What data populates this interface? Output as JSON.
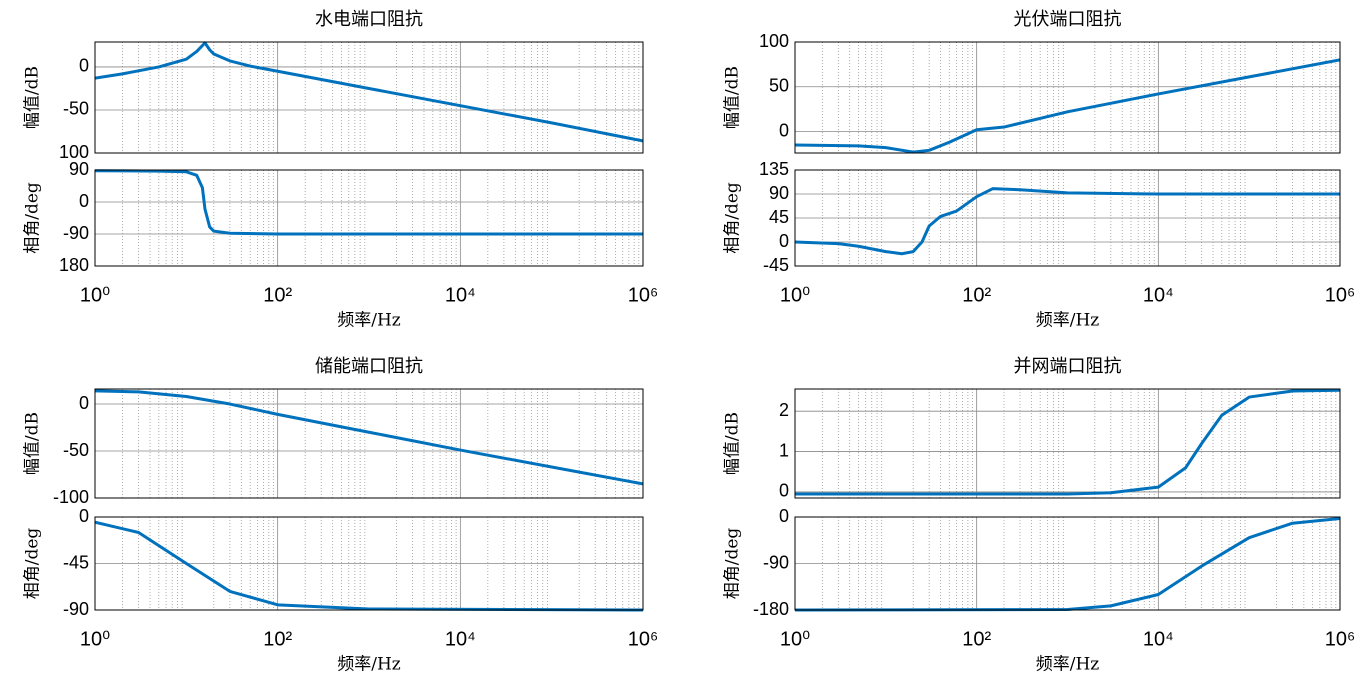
{
  "chart_data": [
    {
      "type": "line",
      "title": "水电端口阻抗",
      "ylabel": "幅值/dB",
      "xscale": "log",
      "xlim": [
        1,
        1000000
      ],
      "xticks": [
        1,
        100,
        10000,
        1000000
      ],
      "show_xticklabels": false,
      "ylim": [
        -100,
        29
      ],
      "yticks": [
        0,
        -50,
        {
          "value": -100,
          "label": "100"
        }
      ],
      "grid": true,
      "color": "#0072bd",
      "x": [
        1,
        2,
        5,
        10,
        13,
        16,
        18,
        20,
        30,
        50,
        100,
        1000,
        10000,
        100000,
        1000000
      ],
      "values": [
        -13,
        -8,
        0,
        9,
        18,
        28,
        20,
        15,
        7,
        1,
        -5,
        -25,
        -45,
        -65,
        -86
      ]
    },
    {
      "type": "line",
      "ylabel": "相角/deg",
      "xlabel": "频率/Hz",
      "xscale": "log",
      "xlim": [
        1,
        1000000
      ],
      "xticks": [
        {
          "value": 1,
          "label": "10⁰"
        },
        {
          "value": 100,
          "label": "10²"
        },
        {
          "value": 10000,
          "label": "10⁴"
        },
        {
          "value": 1000000,
          "label": "10⁶"
        }
      ],
      "show_xticklabels": true,
      "ylim": [
        -180,
        90
      ],
      "yticks": [
        90,
        0,
        -90,
        {
          "value": -180,
          "label": "180"
        }
      ],
      "grid": true,
      "color": "#0072bd",
      "x": [
        1,
        5,
        10,
        13,
        15,
        16,
        18,
        20,
        30,
        100,
        1000000
      ],
      "values": [
        88,
        87,
        85,
        75,
        40,
        -20,
        -70,
        -82,
        -88,
        -90,
        -90
      ]
    },
    {
      "type": "line",
      "title": "光伏端口阻抗",
      "ylabel": "幅值/dB",
      "xscale": "log",
      "xlim": [
        1,
        1000000
      ],
      "xticks": [
        1,
        100,
        10000,
        1000000
      ],
      "show_xticklabels": false,
      "ylim": [
        -24,
        100
      ],
      "yticks": [
        100,
        50,
        0
      ],
      "grid": true,
      "color": "#0072bd",
      "x": [
        1,
        5,
        10,
        20,
        30,
        50,
        100,
        200,
        1000,
        10000,
        100000,
        1000000
      ],
      "values": [
        -15,
        -16,
        -18,
        -23,
        -21,
        -12,
        2,
        5,
        22,
        42,
        61,
        80
      ]
    },
    {
      "type": "line",
      "ylabel": "相角/deg",
      "xlabel": "频率/Hz",
      "xscale": "log",
      "xlim": [
        1,
        1000000
      ],
      "xticks": [
        {
          "value": 1,
          "label": "10⁰"
        },
        {
          "value": 100,
          "label": "10²"
        },
        {
          "value": 10000,
          "label": "10⁴"
        },
        {
          "value": 1000000,
          "label": "10⁶"
        }
      ],
      "show_xticklabels": true,
      "ylim": [
        -45,
        135
      ],
      "yticks": [
        135,
        90,
        45,
        0,
        -45
      ],
      "grid": true,
      "color": "#0072bd",
      "x": [
        1,
        3,
        5,
        10,
        15,
        20,
        25,
        30,
        40,
        60,
        100,
        150,
        300,
        1000,
        10000,
        1000000
      ],
      "values": [
        0,
        -3,
        -8,
        -18,
        -22,
        -18,
        0,
        30,
        48,
        58,
        85,
        100,
        98,
        92,
        90,
        90
      ]
    },
    {
      "type": "line",
      "title": "储能端口阻抗",
      "ylabel": "幅值/dB",
      "xscale": "log",
      "xlim": [
        1,
        1000000
      ],
      "xticks": [
        1,
        100,
        10000,
        1000000
      ],
      "show_xticklabels": false,
      "ylim": [
        -100,
        16
      ],
      "yticks": [
        0,
        -50,
        -100
      ],
      "grid": true,
      "color": "#0072bd",
      "x": [
        1,
        3,
        10,
        30,
        100,
        1000,
        10000,
        100000,
        1000000
      ],
      "values": [
        14,
        13,
        8,
        0,
        -11,
        -30,
        -49,
        -67,
        -85
      ]
    },
    {
      "type": "line",
      "ylabel": "相角/deg",
      "xlabel": "频率/Hz",
      "xscale": "log",
      "xlim": [
        1,
        1000000
      ],
      "xticks": [
        {
          "value": 1,
          "label": "10⁰"
        },
        {
          "value": 100,
          "label": "10²"
        },
        {
          "value": 10000,
          "label": "10⁴"
        },
        {
          "value": 1000000,
          "label": "10⁶"
        }
      ],
      "show_xticklabels": true,
      "ylim": [
        -90,
        0
      ],
      "yticks": [
        0,
        -45,
        -90
      ],
      "grid": true,
      "color": "#0072bd",
      "x": [
        1,
        3,
        10,
        30,
        100,
        1000,
        1000000
      ],
      "values": [
        -5,
        -15,
        -45,
        -72,
        -85,
        -89,
        -90
      ]
    },
    {
      "type": "line",
      "title": "并网端口阻抗",
      "ylabel": "幅值/dB",
      "xscale": "log",
      "xlim": [
        1,
        1000000
      ],
      "xticks": [
        1,
        100,
        10000,
        1000000
      ],
      "show_xticklabels": false,
      "ylim": [
        -0.15,
        2.55
      ],
      "yticks": [
        2,
        1,
        0
      ],
      "grid": true,
      "color": "#0072bd",
      "x": [
        1,
        1000,
        3000,
        10000,
        20000,
        30000,
        50000,
        100000,
        300000,
        1000000
      ],
      "values": [
        -0.05,
        -0.05,
        -0.02,
        0.12,
        0.6,
        1.2,
        1.9,
        2.35,
        2.5,
        2.52
      ]
    },
    {
      "type": "line",
      "ylabel": "相角/deg",
      "xlabel": "频率/Hz",
      "xscale": "log",
      "xlim": [
        1,
        1000000
      ],
      "xticks": [
        {
          "value": 1,
          "label": "10⁰"
        },
        {
          "value": 100,
          "label": "10²"
        },
        {
          "value": 10000,
          "label": "10⁴"
        },
        {
          "value": 1000000,
          "label": "10⁶"
        }
      ],
      "show_xticklabels": true,
      "ylim": [
        -180,
        0
      ],
      "yticks": [
        0,
        -90,
        -180
      ],
      "grid": true,
      "color": "#0072bd",
      "x": [
        1,
        1000,
        3000,
        10000,
        30000,
        100000,
        300000,
        1000000
      ],
      "values": [
        -180,
        -179,
        -172,
        -150,
        -95,
        -40,
        -12,
        -3
      ]
    }
  ]
}
